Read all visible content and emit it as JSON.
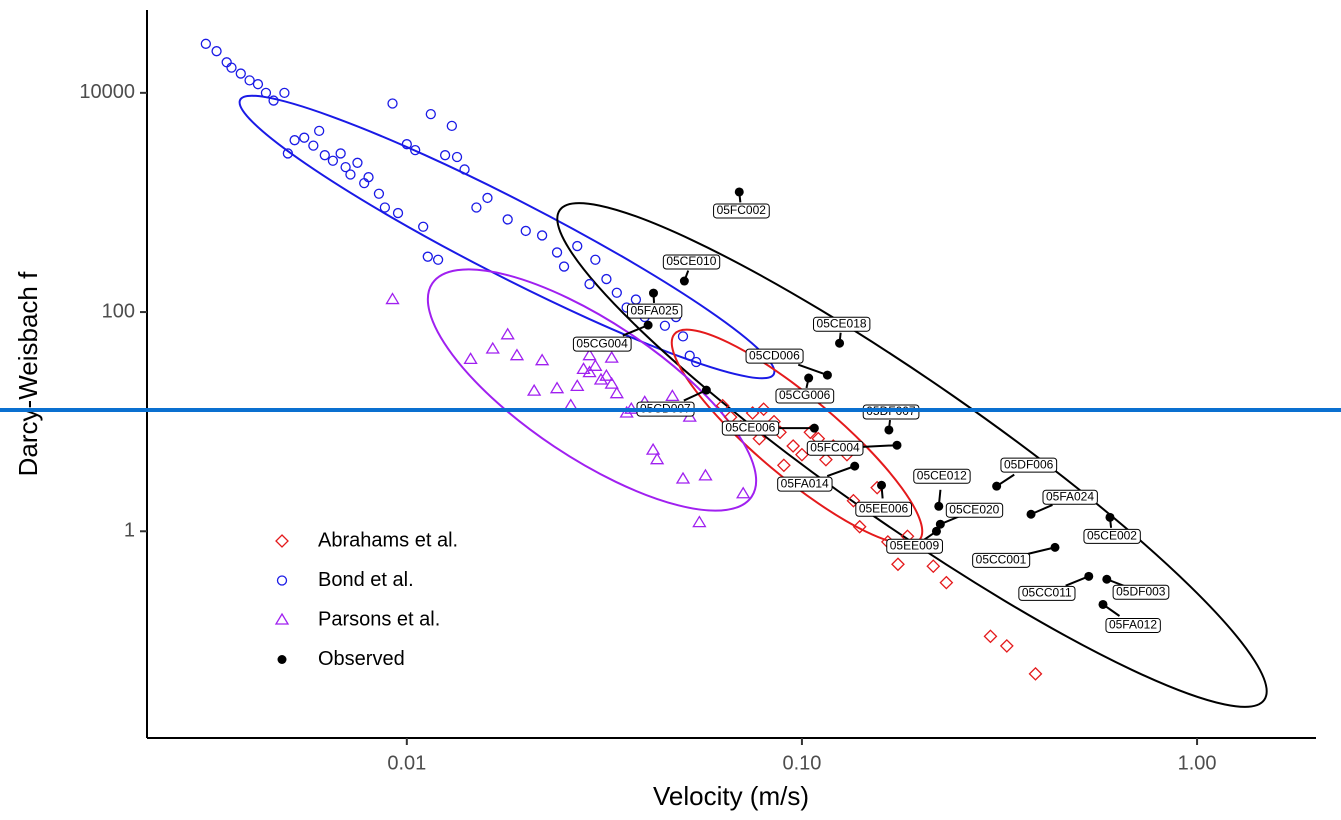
{
  "chart_data": {
    "type": "scatter",
    "xlabel": "Velocity (m/s)",
    "ylabel": "Darcy-Weisbach f",
    "log_x": true,
    "log_y": true,
    "xlim": [
      0.0022,
      2
    ],
    "ylim": [
      0.013,
      57000
    ],
    "xticks": [
      0.01,
      {
        "value": 0.1,
        "label": "0.10"
      },
      {
        "value": 1,
        "label": "1.00"
      }
    ],
    "yticks": [
      1,
      100,
      10000
    ],
    "grid": false,
    "legend": "bottom-left",
    "series": [
      {
        "name": "Abrahams et al.",
        "color": "#e41a1c",
        "shape": "diamond",
        "x": [
          0.063,
          0.066,
          0.07,
          0.075,
          0.078,
          0.08,
          0.085,
          0.088,
          0.09,
          0.095,
          0.1,
          0.105,
          0.11,
          0.115,
          0.12,
          0.13,
          0.135,
          0.14,
          0.155,
          0.165,
          0.175,
          0.185,
          0.215,
          0.232,
          0.3,
          0.33,
          0.39
        ],
        "values": [
          14,
          11,
          9,
          12,
          7,
          13,
          10,
          8,
          4,
          6,
          5,
          8,
          7,
          4.5,
          6,
          5,
          1.9,
          1.1,
          2.5,
          0.8,
          0.5,
          0.9,
          0.48,
          0.34,
          0.11,
          0.09,
          0.05
        ]
      },
      {
        "name": "Bond et al.",
        "color": "#1a1ae6",
        "shape": "circle",
        "x": [
          0.0031,
          0.0033,
          0.0035,
          0.0036,
          0.0038,
          0.004,
          0.0042,
          0.0044,
          0.0046,
          0.0049,
          0.005,
          0.0052,
          0.0055,
          0.0058,
          0.006,
          0.0062,
          0.0065,
          0.0068,
          0.007,
          0.0072,
          0.0075,
          0.0078,
          0.008,
          0.0085,
          0.0088,
          0.0092,
          0.0095,
          0.01,
          0.0105,
          0.011,
          0.0113,
          0.0115,
          0.012,
          0.0125,
          0.013,
          0.0134,
          0.014,
          0.015,
          0.016,
          0.018,
          0.02,
          0.022,
          0.024,
          0.025,
          0.027,
          0.029,
          0.03,
          0.032,
          0.034,
          0.036,
          0.038,
          0.04,
          0.042,
          0.045,
          0.048,
          0.05,
          0.052,
          0.054
        ],
        "values": [
          28000,
          24000,
          19000,
          17000,
          15000,
          13000,
          12000,
          10000,
          8500,
          10000,
          2800,
          3700,
          3900,
          3300,
          4500,
          2700,
          2400,
          2800,
          2100,
          1800,
          2300,
          1500,
          1700,
          1200,
          900,
          8000,
          800,
          3400,
          3000,
          600,
          320,
          6400,
          300,
          2700,
          5000,
          2600,
          2000,
          900,
          1100,
          700,
          550,
          500,
          350,
          260,
          400,
          180,
          300,
          200,
          150,
          110,
          130,
          90,
          100,
          75,
          90,
          60,
          40,
          35
        ]
      },
      {
        "name": "Parsons et al.",
        "color": "#a020f0",
        "shape": "triangle",
        "x": [
          0.0092,
          0.0145,
          0.0165,
          0.018,
          0.019,
          0.021,
          0.022,
          0.024,
          0.026,
          0.027,
          0.028,
          0.029,
          0.029,
          0.03,
          0.031,
          0.032,
          0.033,
          0.033,
          0.034,
          0.036,
          0.037,
          0.04,
          0.042,
          0.043,
          0.047,
          0.05,
          0.052,
          0.055,
          0.057,
          0.071
        ],
        "values": [
          130,
          37,
          46,
          62,
          40,
          19,
          36,
          20,
          14,
          21,
          30,
          28,
          40,
          32,
          24,
          26,
          22,
          38,
          18,
          12,
          13,
          15,
          5.5,
          4.5,
          17,
          3,
          11,
          1.2,
          3.2,
          2.2
        ]
      },
      {
        "name": "Observed",
        "color": "#000000",
        "shape": "dot",
        "x": [
          0.0694,
          0.0504,
          0.0421,
          0.0408,
          0.1245,
          0.116,
          0.104,
          0.0573,
          0.166,
          0.1075,
          0.174,
          0.136,
          0.159,
          0.222,
          0.224,
          0.219,
          0.311,
          0.38,
          0.602,
          0.437,
          0.532,
          0.591,
          0.578
        ],
        "values": [
          1247,
          192,
          149,
          76,
          52,
          26.6,
          25,
          19.4,
          8.4,
          8.73,
          6.1,
          3.93,
          2.63,
          1.69,
          1.16,
          1.0,
          2.58,
          1.43,
          1.34,
          0.713,
          0.388,
          0.365,
          0.215
        ],
        "labels": [
          "05FC002",
          "05CE010",
          "05FA025",
          "05CG004",
          "05CE018",
          "05CD006",
          "05CG006",
          "05CD007",
          "05DF007",
          "05CE006",
          "05FC004",
          "05FA014",
          "05EE006",
          "05CE012",
          "05CE020",
          "05EE009",
          "05DF006",
          "05FA024",
          "05CE002",
          "05CC001",
          "05CC011",
          "05DF003",
          "05FA012"
        ]
      }
    ]
  }
}
